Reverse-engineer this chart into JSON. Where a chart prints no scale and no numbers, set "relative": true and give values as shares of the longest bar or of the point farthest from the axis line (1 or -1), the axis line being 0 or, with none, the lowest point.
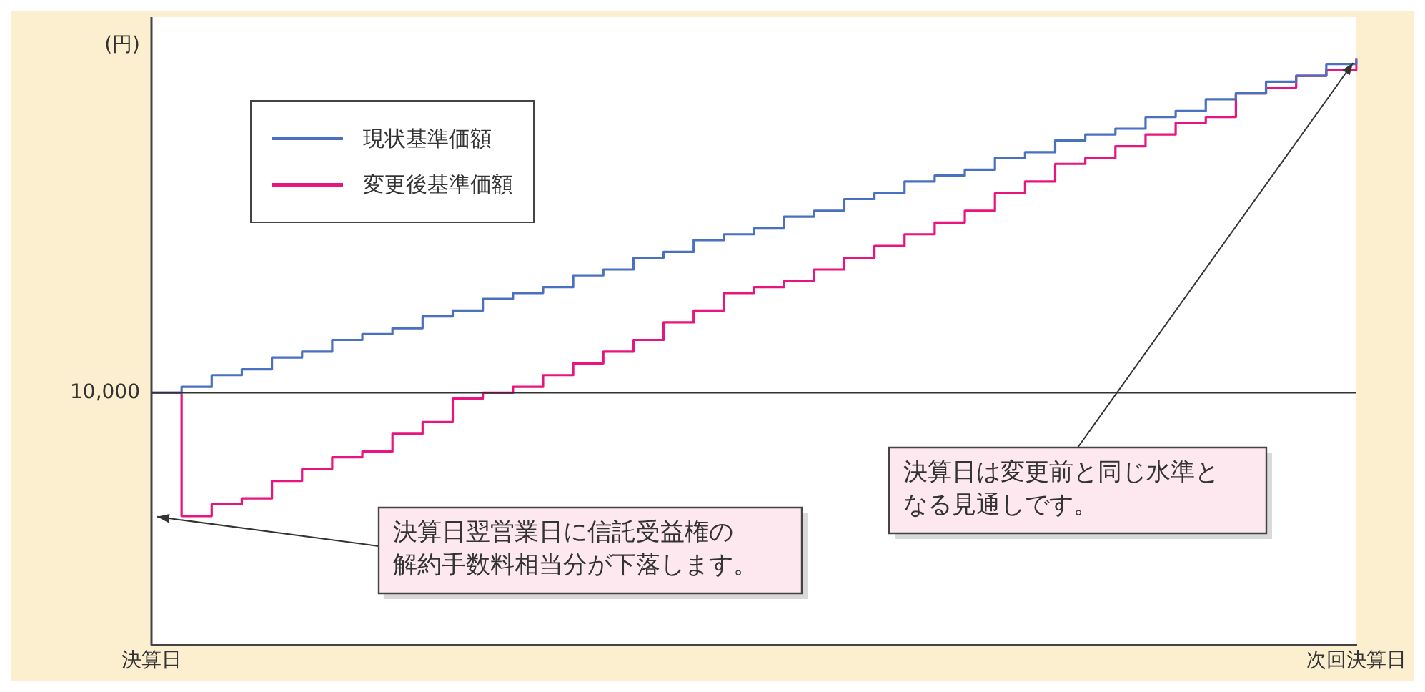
{
  "chart_data": {
    "type": "step",
    "relative": true,
    "ylabel": "(円)",
    "categories": [
      "決算日",
      null,
      null,
      null,
      null,
      null,
      null,
      null,
      null,
      null,
      null,
      null,
      null,
      null,
      null,
      null,
      null,
      null,
      null,
      null,
      null,
      null,
      null,
      null,
      null,
      null,
      null,
      null,
      null,
      null,
      null,
      null,
      null,
      null,
      null,
      null,
      null,
      null,
      null,
      null,
      "次回決算日"
    ],
    "grid": false,
    "legend": "top left",
    "marker": "none",
    "line_style": "solid",
    "series": [
      {
        "name": "現状基準価額",
        "color": "#4a70c0",
        "values": [
          0.43,
          0.44,
          0.46,
          0.47,
          0.49,
          0.5,
          0.52,
          0.53,
          0.54,
          0.56,
          0.57,
          0.59,
          0.6,
          0.61,
          0.63,
          0.64,
          0.66,
          0.67,
          0.69,
          0.7,
          0.71,
          0.73,
          0.74,
          0.76,
          0.77,
          0.79,
          0.8,
          0.81,
          0.83,
          0.84,
          0.86,
          0.87,
          0.88,
          0.9,
          0.91,
          0.93,
          0.94,
          0.96,
          0.97,
          0.99,
          1.0
        ]
      },
      {
        "name": "変更後基準価額",
        "color": "#e8157f",
        "values": [
          0.43,
          0.22,
          0.24,
          0.25,
          0.28,
          0.3,
          0.32,
          0.33,
          0.36,
          0.38,
          0.42,
          0.43,
          0.44,
          0.46,
          0.48,
          0.5,
          0.52,
          0.55,
          0.57,
          0.6,
          0.61,
          0.62,
          0.64,
          0.66,
          0.68,
          0.7,
          0.72,
          0.74,
          0.77,
          0.79,
          0.82,
          0.83,
          0.85,
          0.87,
          0.89,
          0.9,
          0.94,
          0.95,
          0.97,
          0.98,
          1.0
        ]
      }
    ],
    "ref_lines": [
      {
        "axis": "y",
        "value": 0.43,
        "color": "#333333"
      }
    ],
    "annotations": [
      "決算日翌営業日に信託受益権の解約手数料相当分が下落します。",
      {
        "text": "決算日は変更前と同じ水準となる見通しです。",
        "x": "次回決算日",
        "y": 1.0
      },
      "10,000"
    ]
  }
}
